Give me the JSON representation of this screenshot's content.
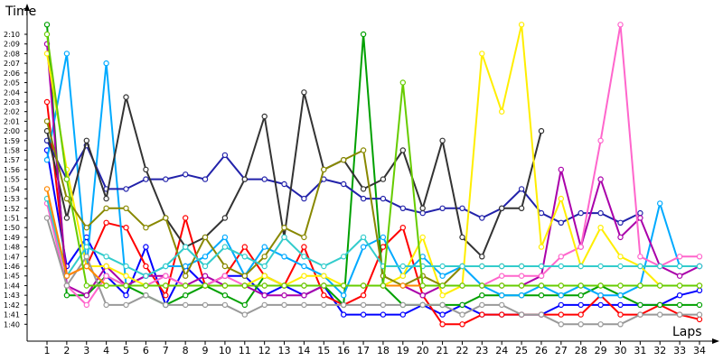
{
  "chart_data": {
    "type": "line",
    "title": "",
    "ylabel": "Time",
    "xlabel": "Laps",
    "x": [
      1,
      2,
      3,
      4,
      5,
      6,
      7,
      8,
      9,
      10,
      11,
      12,
      13,
      14,
      15,
      16,
      17,
      18,
      19,
      20,
      21,
      22,
      23,
      24,
      25,
      26,
      27,
      28,
      29,
      30,
      31,
      32,
      33,
      34
    ],
    "ylim_seconds": [
      97,
      131.5
    ],
    "y_ticks": [
      "1:40",
      "1:41",
      "1:42",
      "1:43",
      "1:44",
      "1:45",
      "1:46",
      "1:47",
      "1:48",
      "1:49",
      "1:50",
      "1:51",
      "1:52",
      "1:53",
      "1:54",
      "1:55",
      "1:56",
      "1:57",
      "1:58",
      "1:59",
      "2:00",
      "2:01",
      "2:02",
      "2:03",
      "2:04",
      "2:05",
      "2:06",
      "2:07",
      "2:08",
      "2:09",
      "2:10"
    ],
    "grid": false,
    "legend": "none",
    "y_unit": "lap time (m:ss)",
    "series": [
      {
        "color": "#0000ff",
        "values": [
          "1:58",
          "1:46",
          "1:49",
          "1:45",
          "1:43",
          "1:48",
          "1:42",
          "1:46",
          "1:44",
          "1:45",
          "1:45",
          "1:43",
          "1:44",
          "1:43",
          "1:44",
          "1:41",
          "1:41",
          "1:41",
          "1:41",
          "1:42",
          "1:41",
          "1:42",
          "1:41",
          "1:41",
          "1:41",
          "1:41",
          "1:42",
          "1:42",
          "1:42",
          "1:42",
          "1:42",
          "1:42",
          "1:43",
          "1:43.5"
        ]
      },
      {
        "color": "#ff0000",
        "values": [
          "2:03",
          "1:45",
          "1:46",
          "1:50.5",
          "1:50",
          "1:46",
          "1:43",
          "1:51",
          "1:44",
          "1:45",
          "1:48",
          "1:45",
          "1:44",
          "1:48",
          "1:43",
          "1:42",
          "1:43",
          "1:48",
          "1:50",
          "1:43",
          "1:40",
          "1:40",
          "1:41",
          "1:41",
          "1:41",
          "1:41",
          "1:41",
          "1:41",
          "1:43",
          "1:41",
          "1:41",
          "1:42",
          "1:41",
          "1:40.5"
        ]
      },
      {
        "color": "#00a000",
        "values": [
          "2:11",
          "1:43",
          "1:43",
          "1:45",
          "1:44",
          "1:43",
          "1:42",
          "1:43",
          "1:44",
          "1:43",
          "1:42",
          "1:45",
          "1:44",
          "1:44",
          "1:44",
          "1:42",
          "2:10",
          "1:44",
          "1:42",
          "1:42",
          "1:42",
          "1:42",
          "1:43",
          "1:43",
          "1:43",
          "1:43",
          "1:43",
          "1:43",
          "1:44",
          "1:43",
          "1:42",
          "1:42",
          "1:42",
          "1:42"
        ]
      },
      {
        "color": "#00aaff",
        "values": [
          "1:57",
          "2:08",
          "1:46",
          "2:07",
          "1:44",
          "1:45",
          "1:46",
          "1:46",
          "1:47",
          "1:49",
          "1:45",
          "1:48",
          "1:47",
          "1:46",
          "1:45",
          "1:43",
          "1:48",
          "1:49",
          "1:45",
          "1:47",
          "1:45",
          "1:46",
          "1:44",
          "1:43",
          "1:43",
          "1:44",
          "1:43",
          "1:44",
          "1:43",
          "1:43",
          "1:44",
          "1:52.5",
          "1:46",
          "1:46"
        ]
      },
      {
        "color": "#2222aa",
        "values": [
          "1:59",
          "1:55",
          "1:58.5",
          "1:54",
          "1:54",
          "1:55",
          "1:55",
          "1:55.5",
          "1:55",
          "1:57.5",
          "1:55",
          "1:55",
          "1:54.5",
          "1:53",
          "1:55",
          "1:54.5",
          "1:53",
          "1:53",
          "1:52",
          "1:51.5",
          "1:52",
          "1:52",
          "1:51",
          "1:52",
          "1:54",
          "1:51.5",
          "1:50.5",
          "1:51.5",
          "1:51.5",
          "1:50.5",
          "1:51.5",
          "",
          "",
          ""
        ]
      },
      {
        "color": "#333333",
        "values": [
          "2:00",
          "1:51",
          "1:59",
          "1:53",
          "2:03.5",
          "1:56",
          "1:51",
          "1:48",
          "1:49",
          "1:51",
          "1:55",
          "2:01.5",
          "1:49",
          "2:04",
          "1:56",
          "1:57",
          "1:54",
          "1:55",
          "1:58",
          "1:52",
          "1:59",
          "1:49",
          "1:47",
          "1:52",
          "1:52",
          "2:00",
          "",
          "",
          "",
          "",
          "",
          "",
          "",
          ""
        ]
      },
      {
        "color": "#aa00aa",
        "values": [
          "2:09",
          "1:44",
          "1:43",
          "1:46",
          "1:44",
          "1:45",
          "1:45",
          "1:44",
          "1:45",
          "1:44",
          "1:44",
          "1:43",
          "1:43",
          "1:43",
          "1:44",
          "1:44",
          "1:44",
          "1:44",
          "1:44",
          "1:43",
          "1:44",
          "1:44",
          "1:44",
          "1:44",
          "1:44",
          "1:45",
          "1:56",
          "1:48",
          "1:55",
          "1:49",
          "1:51",
          "1:46",
          "1:45",
          "1:46"
        ]
      },
      {
        "color": "#ff66cc",
        "values": [
          "1:52.5",
          "1:44",
          "1:42",
          "1:45",
          "1:44",
          "1:44",
          "1:45",
          "1:44",
          "1:44",
          "1:45",
          "1:44",
          "1:44",
          "1:44",
          "1:44",
          "1:44",
          "1:44",
          "1:44",
          "1:44",
          "1:44",
          "1:44",
          "1:44",
          "1:44",
          "1:44",
          "1:45",
          "1:45",
          "1:45",
          "1:47",
          "1:48",
          "1:59",
          "2:11",
          "1:47",
          "1:46",
          "1:47",
          "1:47"
        ]
      },
      {
        "color": "#ffee00",
        "values": [
          "2:08",
          "1:56",
          "1:46",
          "1:46",
          "1:45",
          "1:44",
          "1:44",
          "1:44",
          "1:44",
          "1:44",
          "1:44",
          "1:45",
          "1:44",
          "1:45",
          "1:45",
          "1:44",
          "1:44",
          "1:44",
          "1:45",
          "1:49",
          "1:43",
          "1:44",
          "2:08",
          "2:02",
          "2:11",
          "1:48",
          "1:53",
          "1:46",
          "1:50",
          "1:47",
          "1:46",
          "1:44",
          "1:44",
          "1:44"
        ]
      },
      {
        "color": "#888800",
        "values": [
          "2:01",
          "1:53",
          "1:50",
          "1:52",
          "1:52",
          "1:50",
          "1:51",
          "1:45",
          "1:49",
          "1:46",
          "1:45",
          "1:47",
          "1:50",
          "1:49",
          "1:56",
          "1:57",
          "1:58",
          "1:45",
          "1:44",
          "1:45",
          "1:44",
          "1:46",
          "1:46",
          "1:46",
          "1:46",
          "",
          "",
          "",
          "",
          "",
          "",
          "",
          "",
          ""
        ]
      },
      {
        "color": "#999999",
        "values": [
          "1:51",
          "1:44",
          "1:47",
          "1:42",
          "1:42",
          "1:43",
          "1:42",
          "1:42",
          "1:42",
          "1:42",
          "1:41",
          "1:42",
          "1:42",
          "1:42",
          "1:42",
          "1:42",
          "1:42",
          "1:42",
          "1:42",
          "1:42",
          "1:42",
          "1:41",
          "1:42",
          "1:42",
          "1:41",
          "1:41",
          "1:40",
          "1:40",
          "1:40",
          "1:40",
          "1:41",
          "1:41",
          "1:41",
          "1:41"
        ]
      },
      {
        "color": "#33cccc",
        "values": [
          "1:53",
          "1:45",
          "1:48",
          "1:47",
          "1:46",
          "1:45",
          "1:46",
          "1:48",
          "1:46",
          "1:48",
          "1:47",
          "1:46",
          "1:49",
          "1:47",
          "1:46",
          "1:47",
          "1:49",
          "1:46",
          "1:46",
          "1:46",
          "1:46",
          "1:46",
          "1:46",
          "1:46",
          "1:46",
          "1:46",
          "1:46",
          "1:46",
          "1:46",
          "1:46",
          "1:46",
          "1:46",
          "1:46",
          "1:46"
        ]
      },
      {
        "color": "#ff8800",
        "values": [
          "1:54",
          "1:45",
          "1:46",
          "1:44",
          "1:44",
          "1:44",
          "1:44",
          "1:44",
          "1:44",
          "1:44",
          "1:44",
          "1:44",
          "1:44",
          "1:44",
          "1:44",
          "1:44",
          "1:44",
          "1:44",
          "1:44",
          "1:44",
          "1:44",
          "1:44",
          "1:44",
          "1:44",
          "1:44",
          "1:44",
          "1:44",
          "1:44",
          "1:44",
          "1:44",
          "1:44",
          "1:44",
          "1:44",
          "1:44"
        ]
      },
      {
        "color": "#66cc00",
        "values": [
          "2:10",
          "1:55",
          "1:44",
          "1:44",
          "1:44",
          "1:44",
          "1:44",
          "1:44",
          "1:44",
          "1:44",
          "1:44",
          "1:44",
          "1:44",
          "1:44",
          "1:44",
          "1:44",
          "1:44",
          "1:44",
          "2:05",
          "1:44",
          "1:44",
          "1:44",
          "1:44",
          "1:44",
          "1:44",
          "1:44",
          "1:44",
          "1:44",
          "1:44",
          "1:44",
          "1:44",
          "1:44",
          "1:44",
          "1:44"
        ]
      }
    ]
  }
}
